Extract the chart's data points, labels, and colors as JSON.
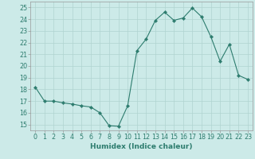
{
  "x": [
    0,
    1,
    2,
    3,
    4,
    5,
    6,
    7,
    8,
    9,
    10,
    11,
    12,
    13,
    14,
    15,
    16,
    17,
    18,
    19,
    20,
    21,
    22,
    23
  ],
  "y": [
    18.2,
    17.0,
    17.0,
    16.85,
    16.75,
    16.6,
    16.5,
    16.0,
    14.9,
    14.85,
    16.6,
    21.3,
    22.3,
    23.9,
    24.6,
    23.9,
    24.1,
    24.95,
    24.2,
    22.5,
    20.4,
    21.85,
    19.2,
    18.85
  ],
  "line_color": "#2d7c6e",
  "marker": "D",
  "marker_size": 2.2,
  "bg_color": "#cceae8",
  "grid_color": "#b0d4d0",
  "xlim": [
    -0.5,
    23.5
  ],
  "ylim": [
    14.5,
    25.5
  ],
  "yticks": [
    15,
    16,
    17,
    18,
    19,
    20,
    21,
    22,
    23,
    24,
    25
  ],
  "xtick_labels": [
    "0",
    "1",
    "2",
    "3",
    "4",
    "5",
    "6",
    "7",
    "8",
    "9",
    "10",
    "11",
    "12",
    "13",
    "14",
    "15",
    "16",
    "17",
    "18",
    "19",
    "20",
    "21",
    "22",
    "23"
  ],
  "xlabel": "Humidex (Indice chaleur)",
  "font_color": "#2d7c6e",
  "label_fontsize": 6.5,
  "tick_fontsize": 5.8
}
